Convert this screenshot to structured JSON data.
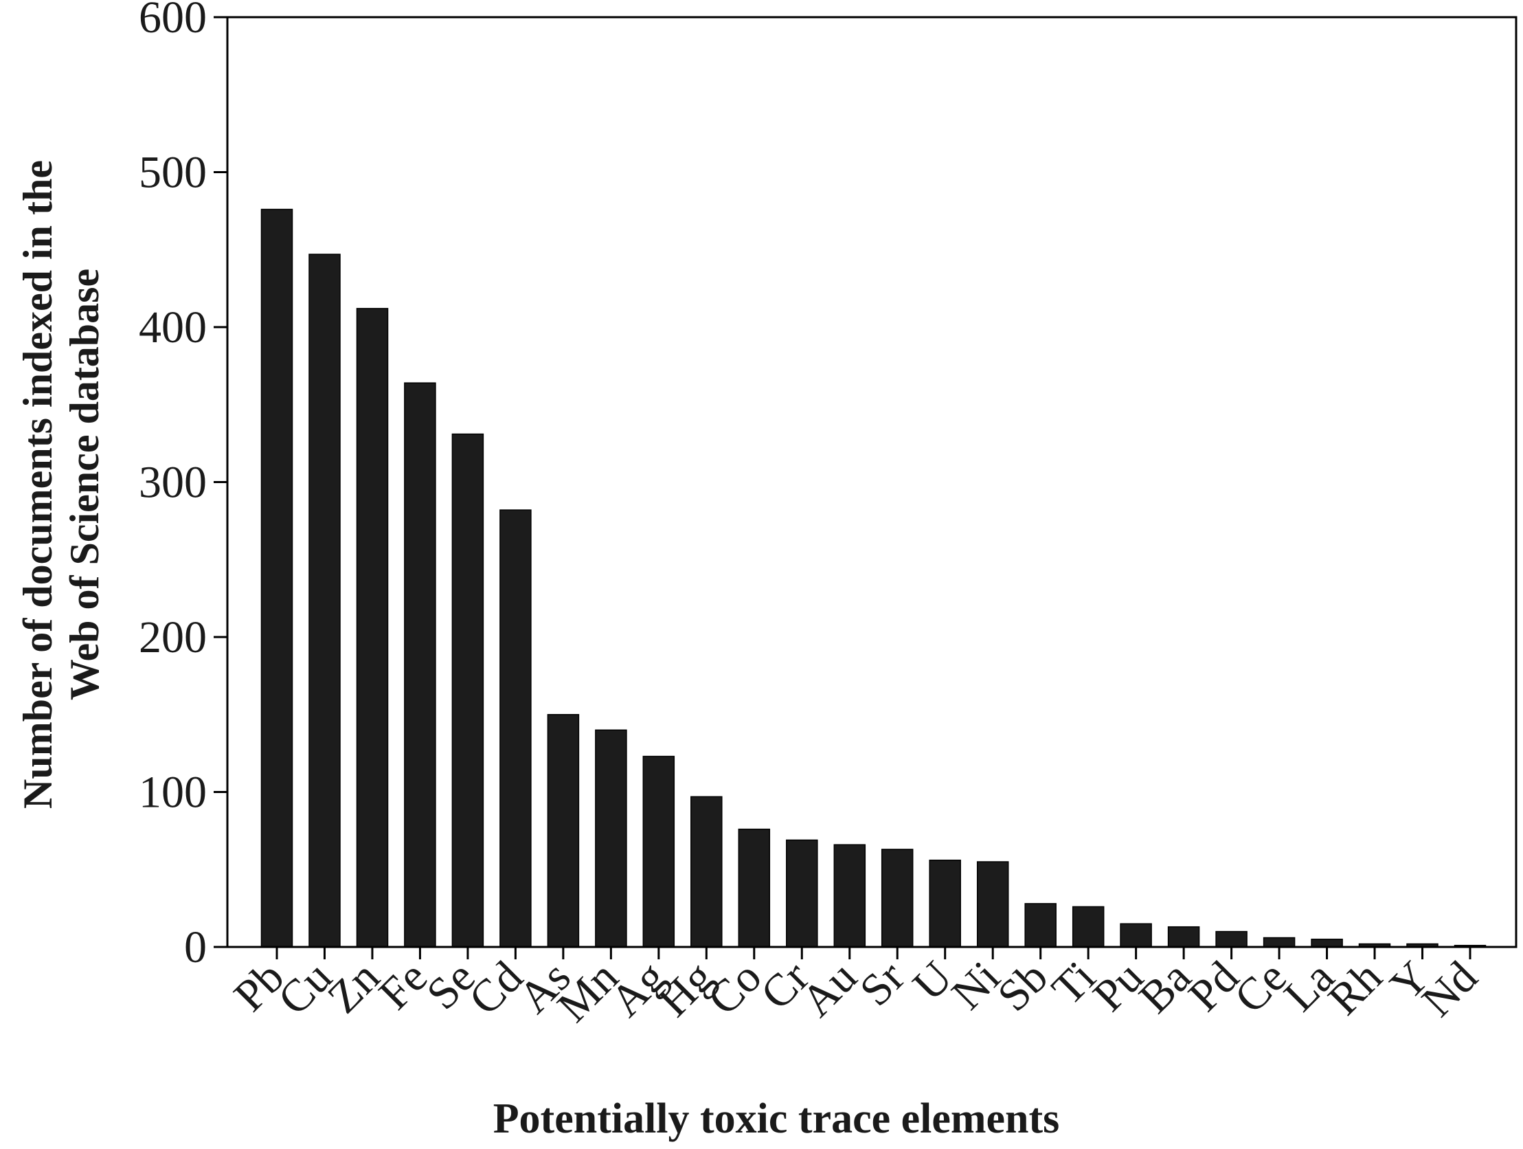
{
  "chart_data": {
    "type": "bar",
    "xlabel": "Potentially toxic trace elements",
    "ylabel_lines": [
      "Number of documents indexed in the",
      "Web of Science database"
    ],
    "ylim": [
      0,
      600
    ],
    "yticks": [
      0,
      100,
      200,
      300,
      400,
      500,
      600
    ],
    "grid": false,
    "bar_color": "#1c1c1c",
    "categories": [
      "Pb",
      "Cu",
      "Zn",
      "Fe",
      "Se",
      "Cd",
      "As",
      "Mn",
      "Ag",
      "Hg",
      "Co",
      "Cr",
      "Au",
      "Sr",
      "U",
      "Ni",
      "Sb",
      "Ti",
      "Pu",
      "Ba",
      "Pd",
      "Ce",
      "La",
      "Rh",
      "Y",
      "Nd"
    ],
    "values": [
      476,
      447,
      412,
      364,
      331,
      282,
      150,
      140,
      123,
      97,
      76,
      69,
      66,
      63,
      56,
      55,
      28,
      26,
      15,
      13,
      10,
      6,
      5,
      2,
      2,
      1
    ]
  }
}
